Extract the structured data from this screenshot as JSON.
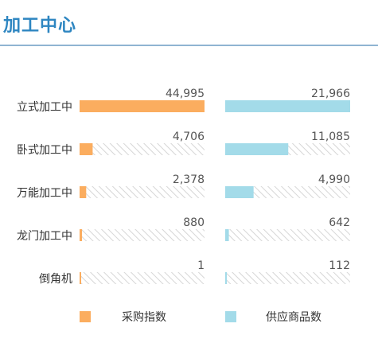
{
  "page": {
    "title": "加工中心"
  },
  "colors": {
    "purchase": "#fbad5f",
    "supply": "#a3dbe9",
    "track_stripe": "#d6d6d6",
    "title": "#2e86c1",
    "text": "#333333",
    "value_text": "#555555"
  },
  "chart_data": {
    "type": "bar",
    "orientation": "horizontal",
    "categories": [
      "立式加工中",
      "卧式加工中",
      "万能加工中",
      "龙门加工中",
      "倒角机"
    ],
    "series": [
      {
        "name": "采购指数",
        "color": "#fbad5f",
        "values": [
          44995,
          4706,
          2378,
          880,
          1
        ],
        "labels": [
          "44,995",
          "4,706",
          "2,378",
          "880",
          "1"
        ]
      },
      {
        "name": "供应商品数",
        "color": "#a3dbe9",
        "values": [
          21966,
          11085,
          4990,
          642,
          112
        ],
        "labels": [
          "21,966",
          "11,085",
          "4,990",
          "642",
          "112"
        ]
      }
    ],
    "scale": "each series scaled to its own maximum",
    "legend": {
      "position": "bottom",
      "items": [
        "采购指数",
        "供应商品数"
      ]
    },
    "grid": false
  }
}
